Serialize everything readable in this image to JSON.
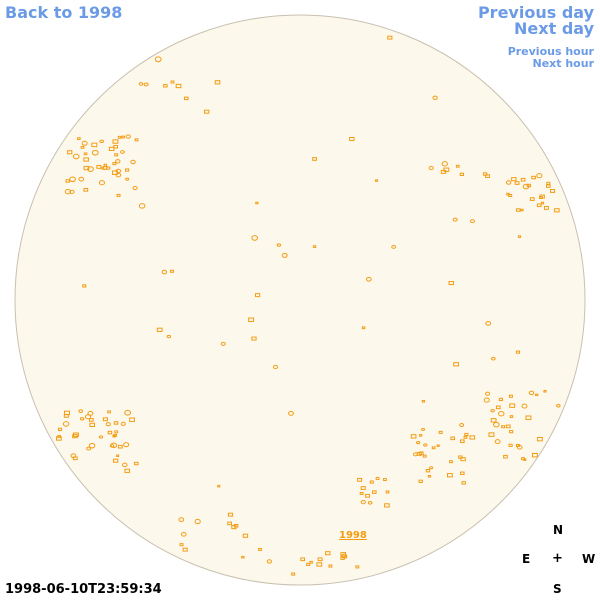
{
  "nav": {
    "back_label": "Back to 1998",
    "previous_day_label": "Previous day",
    "next_day_label": "Next day",
    "previous_hour_label": "Previous hour",
    "next_hour_label": "Next hour"
  },
  "timestamp": "1998-06-10T23:59:34",
  "year_link_label": "1998",
  "compass": {
    "north": "N",
    "east": "E",
    "center": "+",
    "west": "W",
    "south": "S"
  },
  "colors": {
    "disk_fill": "#fdf8ec",
    "disk_border": "#c8c0b0",
    "feature": "#f39c12",
    "link": "#6b9be6"
  }
}
